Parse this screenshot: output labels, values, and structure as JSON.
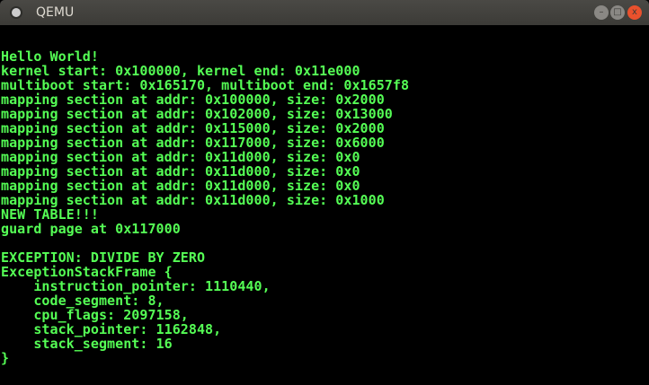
{
  "window": {
    "title": "QEMU",
    "buttons": {
      "minimize": "–",
      "maximize": "□",
      "close": "x"
    }
  },
  "console": {
    "text_color": "#55ff55",
    "background": "#000000",
    "lines": [
      "Hello World!",
      "kernel start: 0x100000, kernel end: 0x11e000",
      "multiboot start: 0x165170, multiboot end: 0x1657f8",
      "mapping section at addr: 0x100000, size: 0x2000",
      "mapping section at addr: 0x102000, size: 0x13000",
      "mapping section at addr: 0x115000, size: 0x2000",
      "mapping section at addr: 0x117000, size: 0x6000",
      "mapping section at addr: 0x11d000, size: 0x0",
      "mapping section at addr: 0x11d000, size: 0x0",
      "mapping section at addr: 0x11d000, size: 0x0",
      "mapping section at addr: 0x11d000, size: 0x1000",
      "NEW TABLE!!!",
      "guard page at 0x117000",
      "",
      "EXCEPTION: DIVIDE BY ZERO",
      "ExceptionStackFrame {",
      "    instruction_pointer: 1110440,",
      "    code_segment: 8,",
      "    cpu_flags: 2097158,",
      "    stack_pointer: 1162848,",
      "    stack_segment: 16",
      "}"
    ]
  }
}
